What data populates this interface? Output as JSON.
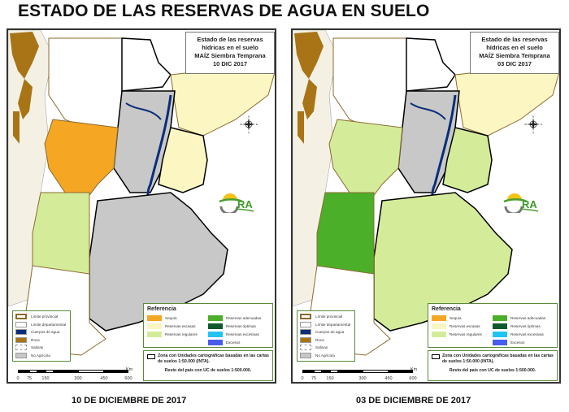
{
  "page": {
    "title": "ESTADO DE LAS RESERVAS DE AGUA EN SUELO"
  },
  "colors": {
    "sequia": "#f5a623",
    "reservas_escasas": "#fbf6c2",
    "reservas_regulares": "#d4ec9a",
    "reservas_adecuadas": "#4caf2a",
    "reservas_optimas": "#0f5a2e",
    "reservas_excesivas": "#22c3f0",
    "excesos": "#4a5cf0",
    "limite_provincial": "#8b6a2f",
    "limite_departamental": "#ffffff",
    "cuerpos_de_agua": "#0b2e7a",
    "roca": "#a87416",
    "salinas": "#ffffff",
    "no_agricola": "#c8c8c8",
    "legend_border": "#5a8a3a"
  },
  "maps": [
    {
      "id": "left",
      "title_box": {
        "line1": "Estado de las reservas",
        "line2": "hídricas en el suelo",
        "line3": "MAÍZ Siembra Temprana",
        "line4": "10 DIC 2017"
      },
      "caption": "10 DE DICIEMBRE DE 2017"
    },
    {
      "id": "right",
      "title_box": {
        "line1": "Estado de las reservas",
        "line2": "hídricas en el suelo",
        "line3": "MAÍZ Siembra Temprana",
        "line4": "03 DIC 2017"
      },
      "caption": "03 DE DICIEMBRE DE 2017"
    }
  ],
  "legend_basic": [
    {
      "label": "Límite provincial",
      "swatch": "limite_provincial"
    },
    {
      "label": "Límite departamental",
      "swatch": "limite_departamental"
    },
    {
      "label": "Cuerpos de agua",
      "swatch": "cuerpos_de_agua"
    },
    {
      "label": "Roca",
      "swatch": "roca"
    },
    {
      "label": "Salinas",
      "swatch": "salinas"
    },
    {
      "label": "No Agrícola",
      "swatch": "no_agricola"
    }
  ],
  "referencia": {
    "heading": "Referencia",
    "left_items": [
      {
        "label": "Sequía",
        "swatch": "sequia"
      },
      {
        "label": "Reservas escasas",
        "swatch": "reservas_escasas"
      },
      {
        "label": "Reservas regulares",
        "swatch": "reservas_regulares"
      }
    ],
    "right_items": [
      {
        "label": "Reservas adecuadas",
        "swatch": "reservas_adecuadas"
      },
      {
        "label": "Reservas óptimas",
        "swatch": "reservas_optimas"
      },
      {
        "label": "Reservas excesivas",
        "swatch": "reservas_excesivas"
      },
      {
        "label": "Excesos",
        "swatch": "excesos"
      }
    ]
  },
  "zona": {
    "text": "Zona con Unidades cartográficas basadas en las cartas de suelos 1:50.000 (INTA).",
    "resto": "Resto del país con UC de suelos 1:500.000."
  },
  "scale": {
    "unit": "Km",
    "ticks": [
      "0",
      "75",
      "150",
      "300",
      "450",
      "600"
    ]
  },
  "compass": {
    "n": "N",
    "s": "S",
    "e": "E",
    "w": "W"
  },
  "logo": {
    "text": "ORA"
  }
}
